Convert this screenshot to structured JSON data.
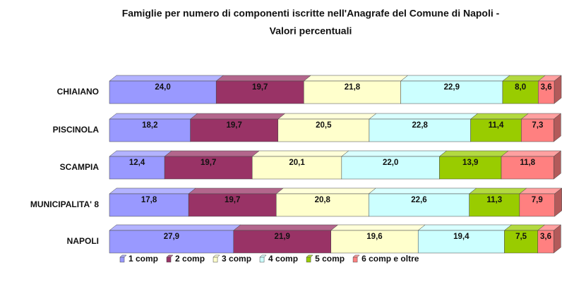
{
  "chart_data": {
    "type": "stacked-bar-horizontal",
    "title": "Famiglie per numero di componenti iscritte nell'Anagrafe del Comune di Napoli -",
    "subtitle": "Valori percentuali",
    "categories": [
      "CHIAIANO",
      "PISCINOLA",
      "SCAMPIA",
      "MUNICIPALITA' 8",
      "NAPOLI"
    ],
    "xlim": [
      0,
      100
    ],
    "legend": "bottom",
    "series": [
      {
        "name": "1 comp",
        "color": "#9999ff",
        "values": [
          24.0,
          18.2,
          12.4,
          17.8,
          27.9
        ],
        "value_labels": [
          "24,0",
          "18,2",
          "12,4",
          "17,8",
          "27,9"
        ]
      },
      {
        "name": "2 comp",
        "color": "#993366",
        "values": [
          19.7,
          19.7,
          19.7,
          19.7,
          21.9
        ],
        "value_labels": [
          "19,7",
          "19,7",
          "19,7",
          "19,7",
          "21,9"
        ]
      },
      {
        "name": "3 comp",
        "color": "#ffffcc",
        "values": [
          21.8,
          20.5,
          20.1,
          20.8,
          19.6
        ],
        "value_labels": [
          "21,8",
          "20,5",
          "20,1",
          "20,8",
          "19,6"
        ]
      },
      {
        "name": "4 comp",
        "color": "#ccffff",
        "values": [
          22.9,
          22.8,
          22.0,
          22.6,
          19.4
        ],
        "value_labels": [
          "22,9",
          "22,8",
          "22,0",
          "22,6",
          "19,4"
        ]
      },
      {
        "name": "5 comp",
        "color": "#99cc00",
        "values": [
          8.0,
          11.4,
          13.9,
          11.3,
          7.5
        ],
        "value_labels": [
          "8,0",
          "11,4",
          "13,9",
          "11,3",
          "7,5"
        ]
      },
      {
        "name": "6 comp e oltre",
        "color": "#ff8080",
        "values": [
          3.6,
          7.3,
          11.8,
          7.9,
          3.6
        ],
        "value_labels": [
          "3,6",
          "7,3",
          "11,8",
          "7,9",
          "3,6"
        ]
      }
    ]
  }
}
